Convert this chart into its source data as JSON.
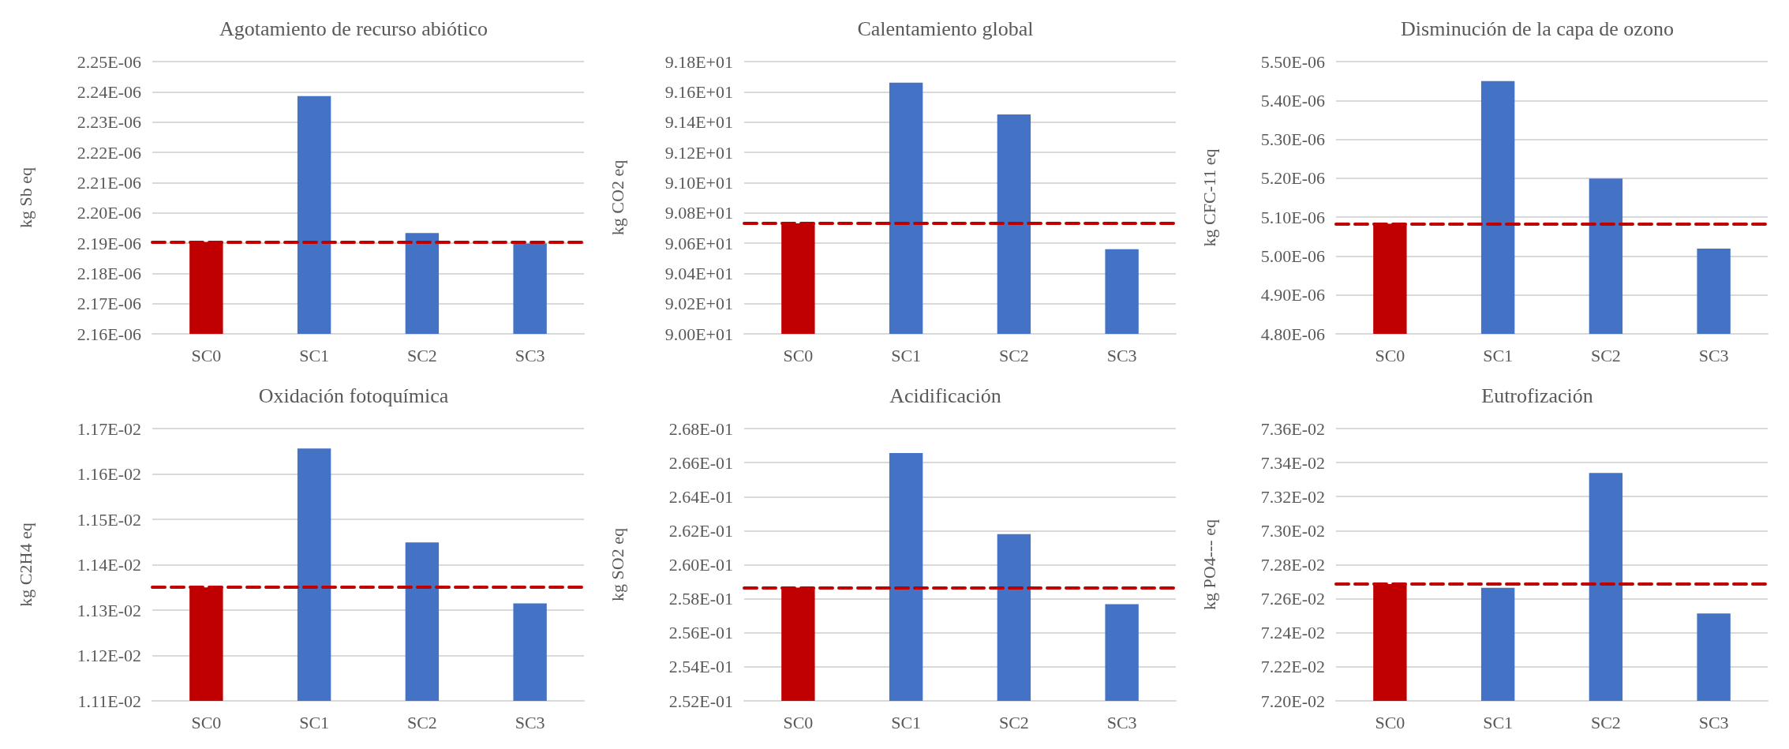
{
  "chart_data": [
    {
      "type": "bar",
      "title": "Agotamiento de recurso abiótico",
      "ylabel": "kg Sb eq",
      "categories": [
        "SC0",
        "SC1",
        "SC2",
        "SC3"
      ],
      "values": [
        2.1904e-06,
        2.2386e-06,
        2.1933e-06,
        2.1899e-06
      ],
      "colors": [
        "#c00000",
        "#4472c4",
        "#4472c4",
        "#4472c4"
      ],
      "ylim": [
        2.16e-06,
        2.25e-06
      ],
      "yticks": [
        {
          "value": 2.16e-06,
          "label": "2.16E-06"
        },
        {
          "value": 2.17e-06,
          "label": "2.17E-06"
        },
        {
          "value": 2.18e-06,
          "label": "2.18E-06"
        },
        {
          "value": 2.19e-06,
          "label": "2.19E-06"
        },
        {
          "value": 2.2e-06,
          "label": "2.20E-06"
        },
        {
          "value": 2.21e-06,
          "label": "2.21E-06"
        },
        {
          "value": 2.22e-06,
          "label": "2.22E-06"
        },
        {
          "value": 2.23e-06,
          "label": "2.23E-06"
        },
        {
          "value": 2.24e-06,
          "label": "2.24E-06"
        },
        {
          "value": 2.25e-06,
          "label": "2.25E-06"
        }
      ],
      "ref_lines": [
        {
          "axis": "y",
          "value": 2.1904e-06,
          "color": "#c00000",
          "line_style": "dashed"
        }
      ],
      "grid": "y"
    },
    {
      "type": "bar",
      "title": "Calentamiento global",
      "ylabel": "kg CO2 eq",
      "categories": [
        "SC0",
        "SC1",
        "SC2",
        "SC3"
      ],
      "values": [
        90.73,
        91.66,
        91.45,
        90.56
      ],
      "colors": [
        "#c00000",
        "#4472c4",
        "#4472c4",
        "#4472c4"
      ],
      "ylim": [
        90.0,
        91.8
      ],
      "yticks": [
        {
          "value": 90.0,
          "label": "9.00E+01"
        },
        {
          "value": 90.2,
          "label": "9.02E+01"
        },
        {
          "value": 90.4,
          "label": "9.04E+01"
        },
        {
          "value": 90.6,
          "label": "9.06E+01"
        },
        {
          "value": 90.8,
          "label": "9.08E+01"
        },
        {
          "value": 91.0,
          "label": "9.10E+01"
        },
        {
          "value": 91.2,
          "label": "9.12E+01"
        },
        {
          "value": 91.4,
          "label": "9.14E+01"
        },
        {
          "value": 91.6,
          "label": "9.16E+01"
        },
        {
          "value": 91.8,
          "label": "9.18E+01"
        }
      ],
      "ref_lines": [
        {
          "axis": "y",
          "value": 90.73,
          "color": "#c00000",
          "line_style": "dashed"
        }
      ],
      "grid": "y"
    },
    {
      "type": "bar",
      "title": "Disminución de la capa de ozono",
      "ylabel": "kg CFC-11 eq",
      "categories": [
        "SC0",
        "SC1",
        "SC2",
        "SC3"
      ],
      "values": [
        5.083e-06,
        5.45e-06,
        5.199e-06,
        5.019e-06
      ],
      "colors": [
        "#c00000",
        "#4472c4",
        "#4472c4",
        "#4472c4"
      ],
      "ylim": [
        4.8e-06,
        5.5e-06
      ],
      "yticks": [
        {
          "value": 4.8e-06,
          "label": "4.80E-06"
        },
        {
          "value": 4.9e-06,
          "label": "4.90E-06"
        },
        {
          "value": 5e-06,
          "label": "5.00E-06"
        },
        {
          "value": 5.1e-06,
          "label": "5.10E-06"
        },
        {
          "value": 5.2e-06,
          "label": "5.20E-06"
        },
        {
          "value": 5.3e-06,
          "label": "5.30E-06"
        },
        {
          "value": 5.4e-06,
          "label": "5.40E-06"
        },
        {
          "value": 5.5e-06,
          "label": "5.50E-06"
        }
      ],
      "ref_lines": [
        {
          "axis": "y",
          "value": 5.083e-06,
          "color": "#c00000",
          "line_style": "dashed"
        }
      ],
      "grid": "y"
    },
    {
      "type": "bar",
      "title": "Oxidación fotoquímica",
      "ylabel": "kg C2H4 eq",
      "categories": [
        "SC0",
        "SC1",
        "SC2",
        "SC3"
      ],
      "values": [
        0.01135,
        0.011656,
        0.011449,
        0.011315
      ],
      "colors": [
        "#c00000",
        "#4472c4",
        "#4472c4",
        "#4472c4"
      ],
      "ylim": [
        0.0111,
        0.0117
      ],
      "yticks": [
        {
          "value": 0.0111,
          "label": "1.11E-02"
        },
        {
          "value": 0.0112,
          "label": "1.12E-02"
        },
        {
          "value": 0.0113,
          "label": "1.13E-02"
        },
        {
          "value": 0.0114,
          "label": "1.14E-02"
        },
        {
          "value": 0.0115,
          "label": "1.15E-02"
        },
        {
          "value": 0.0116,
          "label": "1.16E-02"
        },
        {
          "value": 0.0117,
          "label": "1.17E-02"
        }
      ],
      "ref_lines": [
        {
          "axis": "y",
          "value": 0.01135,
          "color": "#c00000",
          "line_style": "dashed"
        }
      ],
      "grid": "y"
    },
    {
      "type": "bar",
      "title": "Acidificación",
      "ylabel": "kg SO2 eq",
      "categories": [
        "SC0",
        "SC1",
        "SC2",
        "SC3"
      ],
      "values": [
        0.25865,
        0.26656,
        0.2618,
        0.25768
      ],
      "colors": [
        "#c00000",
        "#4472c4",
        "#4472c4",
        "#4472c4"
      ],
      "ylim": [
        0.252,
        0.268
      ],
      "yticks": [
        {
          "value": 0.252,
          "label": "2.52E-01"
        },
        {
          "value": 0.254,
          "label": "2.54E-01"
        },
        {
          "value": 0.256,
          "label": "2.56E-01"
        },
        {
          "value": 0.258,
          "label": "2.58E-01"
        },
        {
          "value": 0.26,
          "label": "2.60E-01"
        },
        {
          "value": 0.262,
          "label": "2.62E-01"
        },
        {
          "value": 0.264,
          "label": "2.64E-01"
        },
        {
          "value": 0.266,
          "label": "2.66E-01"
        },
        {
          "value": 0.268,
          "label": "2.68E-01"
        }
      ],
      "ref_lines": [
        {
          "axis": "y",
          "value": 0.25865,
          "color": "#c00000",
          "line_style": "dashed"
        }
      ],
      "grid": "y"
    },
    {
      "type": "bar",
      "title": "Eutrofización",
      "ylabel": "kg PO4--- eq",
      "categories": [
        "SC0",
        "SC1",
        "SC2",
        "SC3"
      ],
      "values": [
        0.072686,
        0.072664,
        0.073339,
        0.072514
      ],
      "colors": [
        "#c00000",
        "#4472c4",
        "#4472c4",
        "#4472c4"
      ],
      "ylim": [
        0.072,
        0.0736
      ],
      "yticks": [
        {
          "value": 0.072,
          "label": "7.20E-02"
        },
        {
          "value": 0.0722,
          "label": "7.22E-02"
        },
        {
          "value": 0.0724,
          "label": "7.24E-02"
        },
        {
          "value": 0.0726,
          "label": "7.26E-02"
        },
        {
          "value": 0.0728,
          "label": "7.28E-02"
        },
        {
          "value": 0.073,
          "label": "7.30E-02"
        },
        {
          "value": 0.0732,
          "label": "7.32E-02"
        },
        {
          "value": 0.0734,
          "label": "7.34E-02"
        },
        {
          "value": 0.0736,
          "label": "7.36E-02"
        }
      ],
      "ref_lines": [
        {
          "axis": "y",
          "value": 0.072686,
          "color": "#c00000",
          "line_style": "dashed"
        }
      ],
      "grid": "y"
    }
  ]
}
